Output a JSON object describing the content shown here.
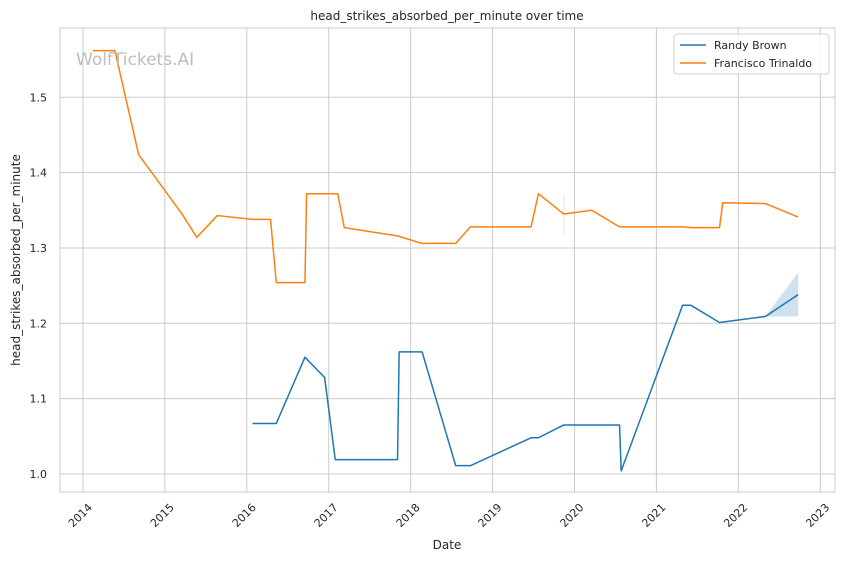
{
  "chart_data": {
    "type": "line",
    "title": "head_strikes_absorbed_per_minute over time",
    "xlabel": "Date",
    "ylabel": "head_strikes_absorbed_per_minute",
    "watermark": "WolfTickets.AI",
    "xlim": [
      2013.72,
      2023.18
    ],
    "ylim": [
      0.976,
      1.592
    ],
    "x_ticks": [
      2014,
      2015,
      2016,
      2017,
      2018,
      2019,
      2020,
      2021,
      2022,
      2023
    ],
    "x_tick_labels": [
      "2014",
      "2015",
      "2016",
      "2017",
      "2018",
      "2019",
      "2020",
      "2021",
      "2022",
      "2023"
    ],
    "y_ticks": [
      1.0,
      1.1,
      1.2,
      1.3,
      1.4,
      1.5
    ],
    "y_tick_labels": [
      "1.0",
      "1.1",
      "1.2",
      "1.3",
      "1.4",
      "1.5"
    ],
    "grid": true,
    "legend": "top-right",
    "series": [
      {
        "name": "Randy Brown",
        "color": "#1f77b4",
        "x": [
          2016.07,
          2016.36,
          2016.71,
          2016.95,
          2017.08,
          2017.84,
          2017.86,
          2018.14,
          2018.55,
          2018.73,
          2019.47,
          2019.56,
          2019.87,
          2020.55,
          2020.57,
          2021.32,
          2021.42,
          2021.77,
          2022.33,
          2022.73
        ],
        "y": [
          1.067,
          1.067,
          1.155,
          1.128,
          1.019,
          1.019,
          1.162,
          1.162,
          1.011,
          1.011,
          1.048,
          1.048,
          1.065,
          1.065,
          1.004,
          1.224,
          1.224,
          1.201,
          1.209,
          1.238
        ],
        "band": {
          "x": [
            2022.33,
            2022.73
          ],
          "lower": [
            1.209,
            1.209
          ],
          "upper": [
            1.209,
            1.267
          ]
        }
      },
      {
        "name": "Francisco Trinaldo",
        "color": "#ff7f0e",
        "x": [
          2014.12,
          2014.39,
          2014.68,
          2015.21,
          2015.39,
          2015.64,
          2016.07,
          2016.29,
          2016.36,
          2016.71,
          2016.73,
          2017.11,
          2017.19,
          2017.84,
          2018.14,
          2018.55,
          2018.73,
          2019.47,
          2019.56,
          2019.87,
          2020.21,
          2020.55,
          2021.32,
          2021.42,
          2021.77,
          2021.81,
          2022.33,
          2022.73
        ],
        "y": [
          1.562,
          1.562,
          1.424,
          1.345,
          1.314,
          1.343,
          1.338,
          1.338,
          1.254,
          1.254,
          1.372,
          1.372,
          1.327,
          1.316,
          1.306,
          1.306,
          1.328,
          1.328,
          1.372,
          1.345,
          1.35,
          1.328,
          1.328,
          1.327,
          1.327,
          1.36,
          1.359,
          1.341
        ],
        "error_bar": {
          "x": 2019.87,
          "lower": 1.318,
          "upper": 1.372
        }
      }
    ]
  }
}
